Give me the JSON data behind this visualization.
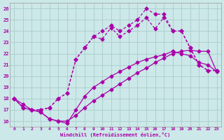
{
  "xlabel": "Windchill (Refroidissement éolien,°C)",
  "bg_color": "#cce8e8",
  "grid_color": "#aacccc",
  "line_color": "#aa00aa",
  "xlim": [
    -0.5,
    23.5
  ],
  "ylim": [
    15.5,
    26.5
  ],
  "xticks": [
    0,
    1,
    2,
    3,
    4,
    5,
    6,
    7,
    8,
    9,
    10,
    11,
    12,
    13,
    14,
    15,
    16,
    17,
    18,
    19,
    20,
    21,
    22,
    23
  ],
  "yticks": [
    16,
    17,
    18,
    19,
    20,
    21,
    22,
    23,
    24,
    25,
    26
  ],
  "line1_x": [
    0,
    1,
    2,
    3,
    4,
    5,
    6,
    7,
    8,
    9,
    10,
    11,
    12,
    13,
    14,
    15,
    16,
    17,
    18,
    19,
    20,
    21,
    22,
    23
  ],
  "line1_y": [
    18.0,
    17.5,
    17.0,
    16.8,
    16.2,
    16.0,
    16.0,
    16.5,
    17.2,
    17.8,
    18.3,
    18.8,
    19.3,
    19.8,
    20.3,
    20.7,
    21.2,
    21.6,
    22.0,
    22.2,
    22.3,
    22.2,
    22.2,
    20.4
  ],
  "line2_x": [
    0,
    1,
    2,
    3,
    4,
    5,
    6,
    7,
    8,
    9,
    10,
    11,
    12,
    13,
    14,
    15,
    16,
    17,
    18,
    19,
    20,
    21,
    22,
    23
  ],
  "line2_y": [
    18.0,
    17.2,
    17.0,
    16.8,
    16.2,
    16.0,
    15.8,
    17.0,
    18.2,
    19.0,
    19.5,
    20.0,
    20.4,
    20.8,
    21.2,
    21.5,
    21.7,
    21.9,
    22.2,
    22.0,
    21.8,
    21.2,
    21.0,
    20.4
  ],
  "line3_x": [
    0,
    1,
    2,
    3,
    4,
    5,
    6,
    7,
    8,
    9,
    10,
    11,
    12,
    13,
    14,
    15,
    16,
    17,
    18,
    19,
    20,
    21,
    22,
    23
  ],
  "line3_y": [
    18.0,
    17.2,
    17.0,
    17.0,
    17.2,
    18.0,
    18.5,
    21.5,
    22.5,
    23.5,
    23.3,
    24.3,
    23.5,
    24.0,
    24.5,
    25.2,
    24.2,
    25.2,
    24.0,
    24.0,
    22.5,
    21.0,
    20.5,
    20.5
  ],
  "line4_x": [
    0,
    1,
    2,
    3,
    4,
    5,
    6,
    7,
    8,
    9,
    10,
    11,
    12,
    13,
    14,
    15,
    16,
    17,
    18,
    19,
    20,
    21,
    22,
    23
  ],
  "line4_y": [
    18.0,
    17.2,
    17.0,
    17.0,
    17.2,
    18.0,
    18.5,
    21.5,
    22.5,
    23.5,
    24.0,
    24.5,
    24.0,
    24.5,
    25.0,
    26.0,
    25.5,
    25.5,
    24.0,
    24.0,
    22.5,
    21.0,
    20.5,
    20.5
  ]
}
